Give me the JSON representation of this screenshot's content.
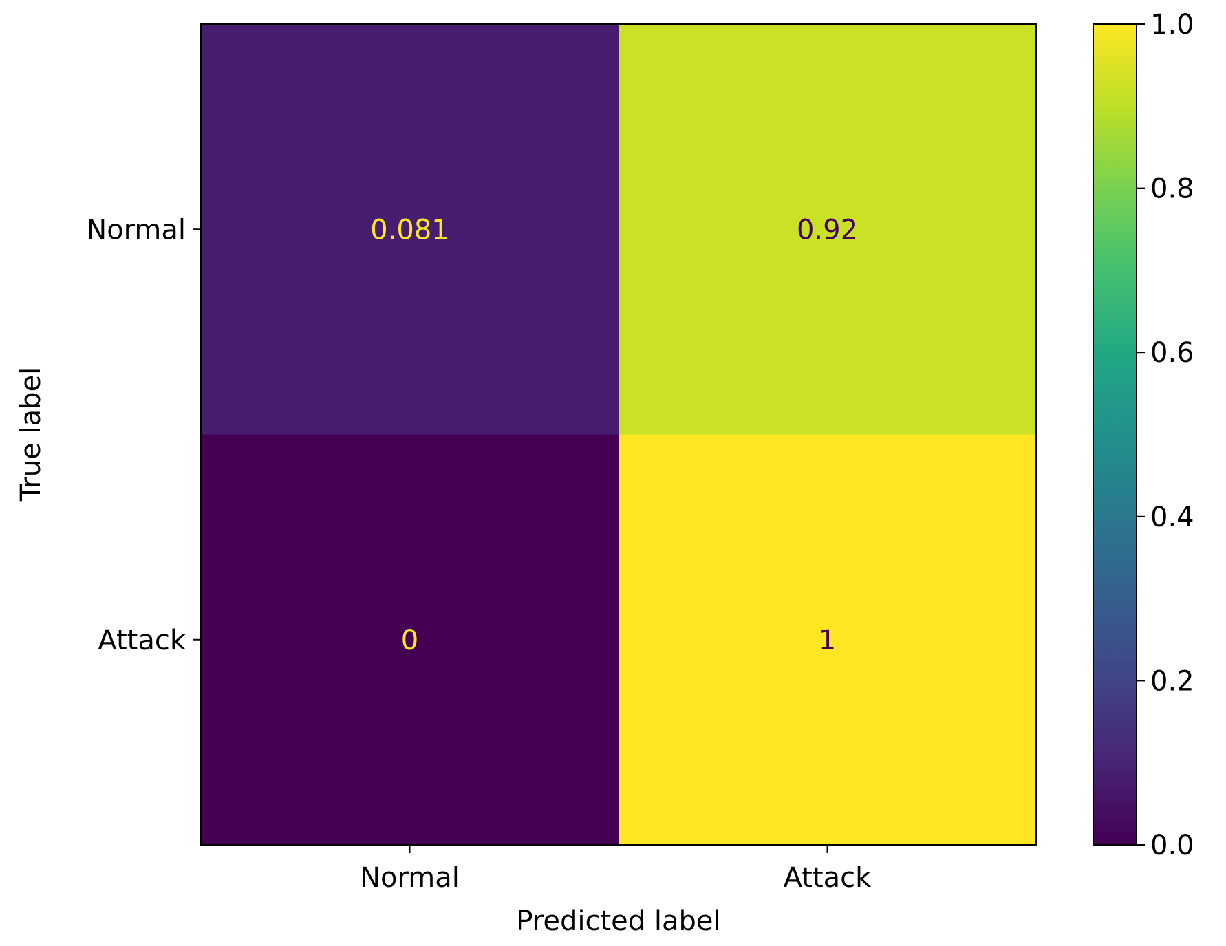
{
  "chart_data": {
    "type": "heatmap",
    "x_categories": [
      "Normal",
      "Attack"
    ],
    "y_categories": [
      "Normal",
      "Attack"
    ],
    "values": [
      [
        0.081,
        0.92
      ],
      [
        0,
        1
      ]
    ],
    "cell_labels": [
      [
        "0.081",
        "0.92"
      ],
      [
        "0",
        "1"
      ]
    ],
    "xlabel": "Predicted label",
    "ylabel": "True label",
    "colormap": "viridis",
    "vmin": 0.0,
    "vmax": 1.0,
    "colorbar_ticks": [
      "0.0",
      "0.2",
      "0.4",
      "0.6",
      "0.8",
      "1.0"
    ],
    "colorbar_values": [
      0.0,
      0.2,
      0.4,
      0.6,
      0.8,
      1.0
    ],
    "text_colors": {
      "dark": "#fde725",
      "light": "#440154"
    },
    "grid": false,
    "legend": "colorbar-right"
  }
}
